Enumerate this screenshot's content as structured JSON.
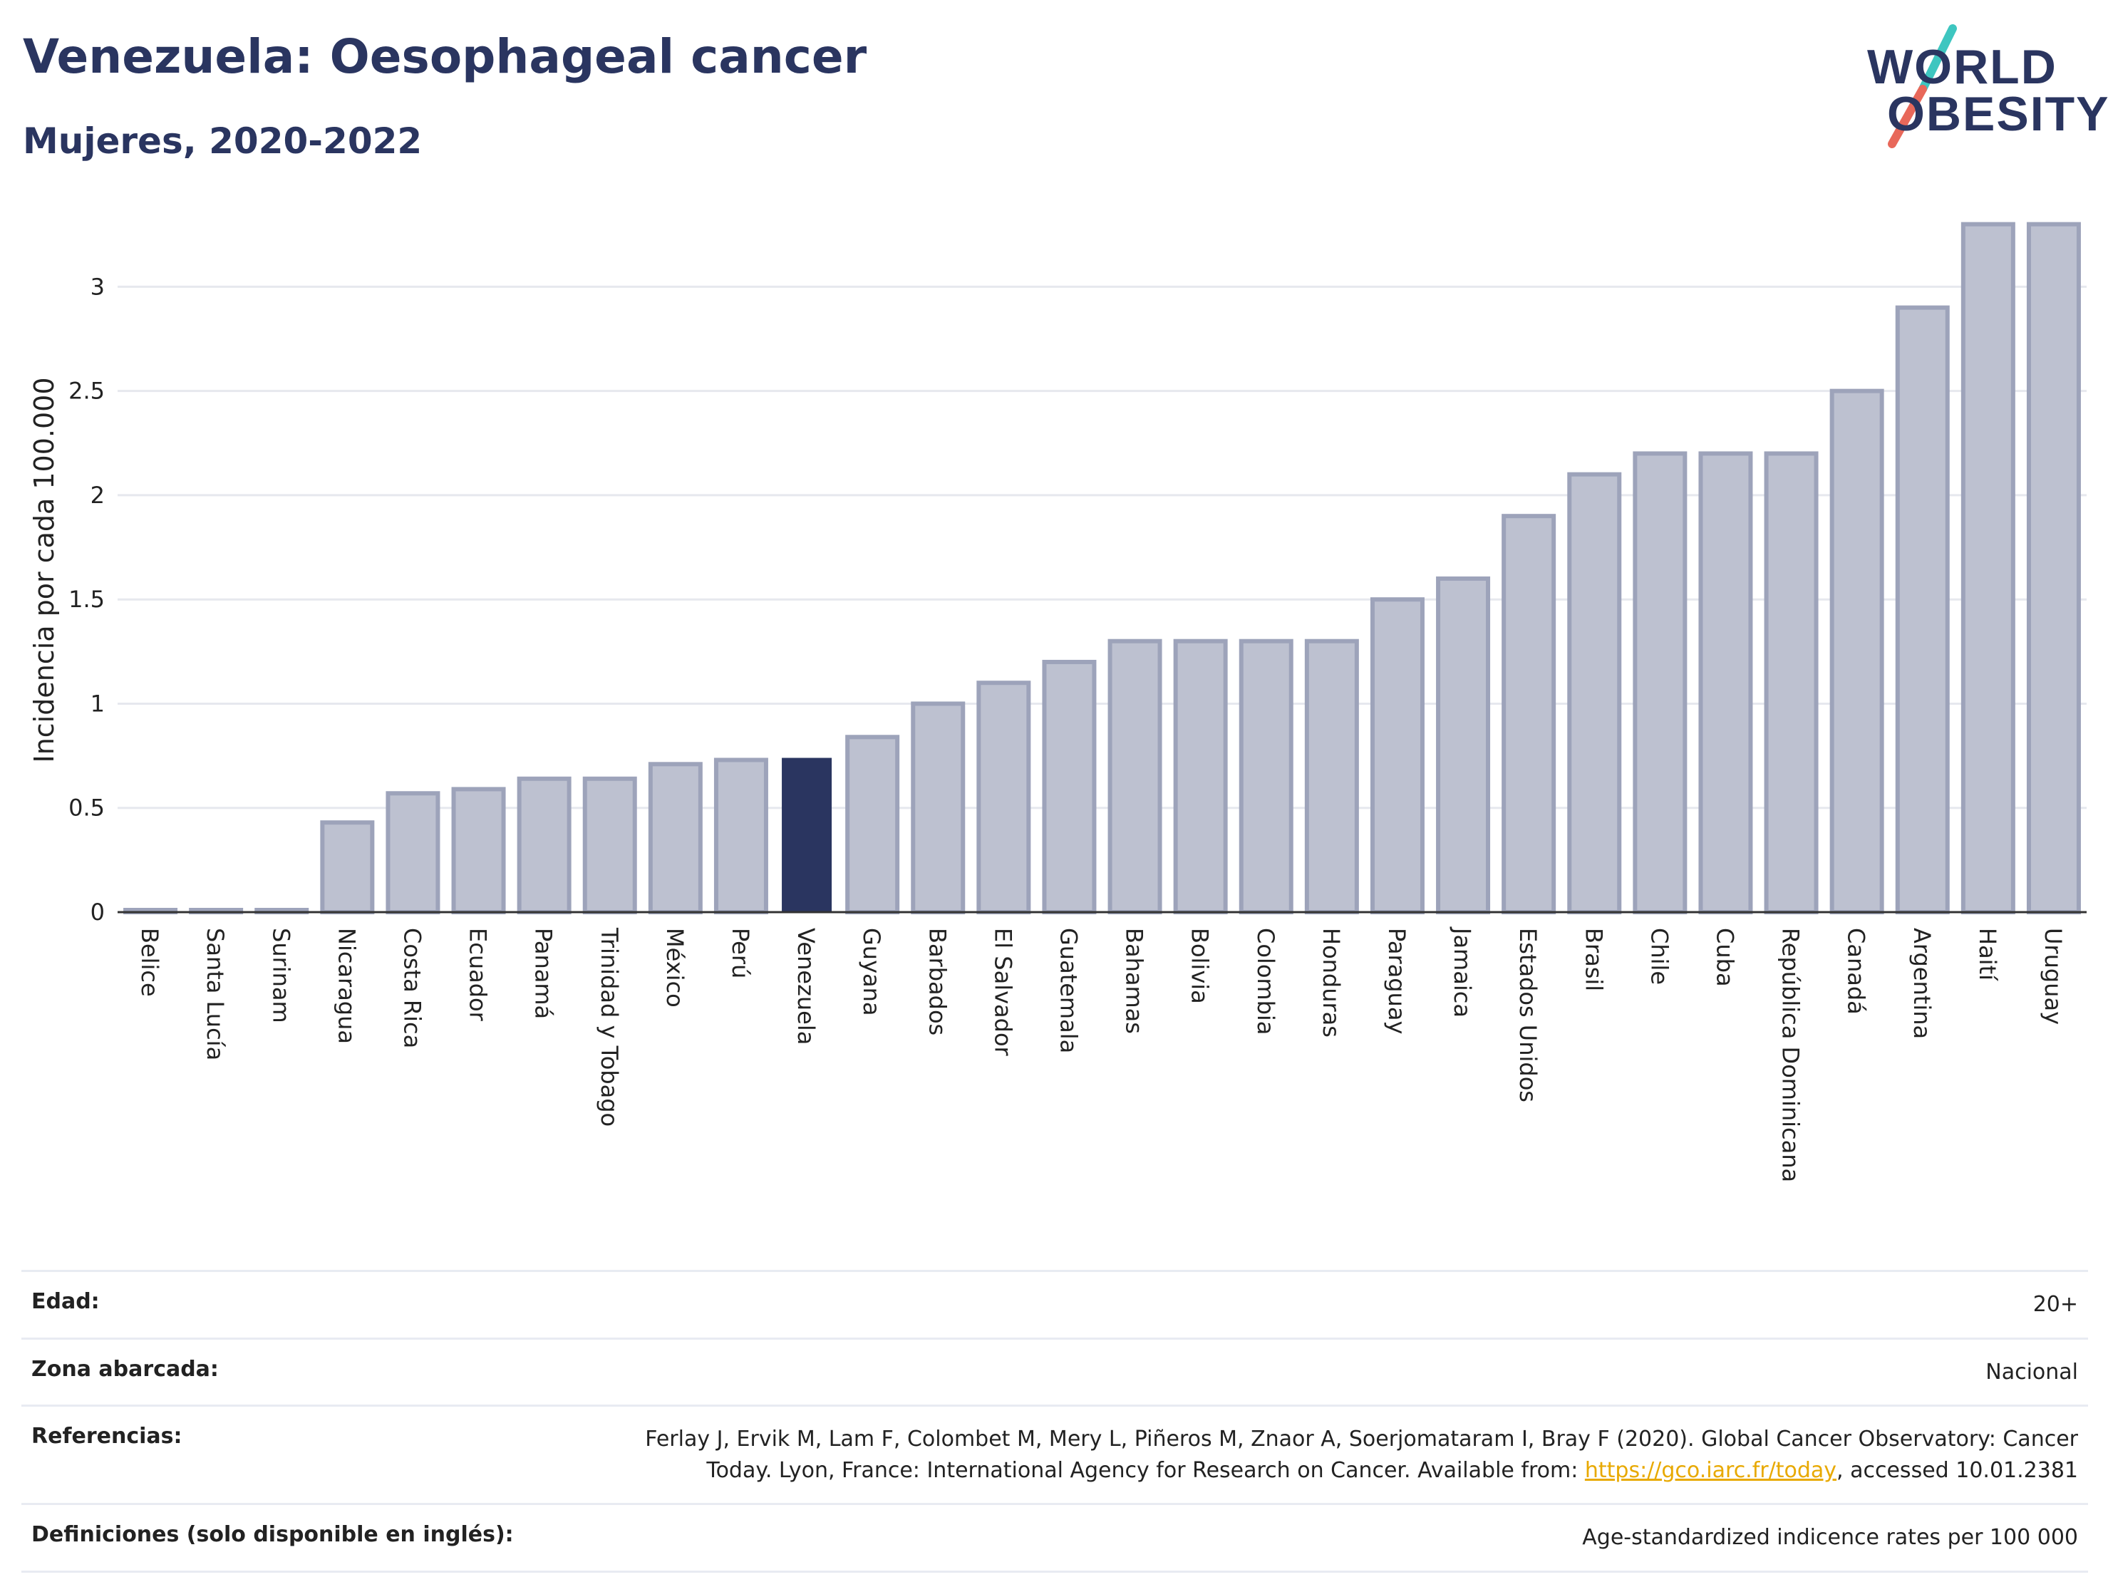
{
  "header": {
    "title": "Venezuela: Oesophageal cancer",
    "subtitle": "Mujeres, 2020-2022"
  },
  "logo": {
    "line1": "WORLD",
    "line2": "OBESITY",
    "colors": {
      "text": "#2a3560",
      "slash_top": "#3ec6c0",
      "slash_bottom": "#e8685a"
    }
  },
  "chart_data": {
    "type": "bar",
    "title": "",
    "xlabel": "",
    "ylabel": "Incidencia por cada 100.000",
    "ylim": [
      0,
      3.35
    ],
    "yticks": [
      0,
      0.5,
      1,
      1.5,
      2,
      2.5,
      3
    ],
    "ytick_labels": [
      "0",
      "0.5",
      "1",
      "1.5",
      "2",
      "2.5",
      "3"
    ],
    "grid": true,
    "highlight": "Venezuela",
    "colors": {
      "bar": "#bdc1d0",
      "bar_border": "#9da3ba",
      "highlight": "#2a3560"
    },
    "categories": [
      "Belice",
      "Santa Lucía",
      "Surinam",
      "Nicaragua",
      "Costa Rica",
      "Ecuador",
      "Panamá",
      "Trinidad y Tobago",
      "México",
      "Perú",
      "Venezuela",
      "Guyana",
      "Barbados",
      "El Salvador",
      "Guatemala",
      "Bahamas",
      "Bolivia",
      "Colombia",
      "Honduras",
      "Paraguay",
      "Jamaica",
      "Estados Unidos",
      "Brasil",
      "Chile",
      "Cuba",
      "República Dominicana",
      "Canadá",
      "Argentina",
      "Haití",
      "Uruguay"
    ],
    "values": [
      0,
      0,
      0,
      0.43,
      0.57,
      0.59,
      0.64,
      0.64,
      0.71,
      0.73,
      0.74,
      0.84,
      1.0,
      1.1,
      1.2,
      1.3,
      1.3,
      1.3,
      1.3,
      1.5,
      1.6,
      1.9,
      2.1,
      2.2,
      2.2,
      2.2,
      2.5,
      2.9,
      3.3,
      3.3
    ]
  },
  "info": [
    {
      "key": "Edad:",
      "value": "20+"
    },
    {
      "key": "Zona abarcada:",
      "value": "Nacional"
    },
    {
      "key": "Referencias:",
      "value_line1": "Ferlay J, Ervik M, Lam F, Colombet M, Mery L, Piñeros M, Znaor A, Soerjomataram I, Bray F (2020). Global Cancer Observatory: Cancer",
      "value_line2_pre": "Today. Lyon, France: International Agency for Research on Cancer. Available from: ",
      "link": "https://gco.iarc.fr/today",
      "value_line2_post": ", accessed 10.01.2381"
    },
    {
      "key": "Definiciones (solo disponible en inglés):",
      "value": "Age-standardized indicence rates per 100 000"
    }
  ]
}
